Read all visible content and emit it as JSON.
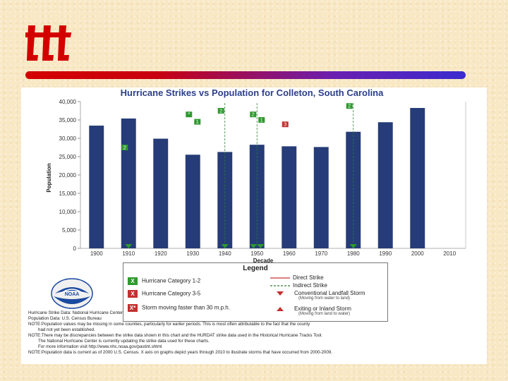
{
  "chart_data": {
    "type": "bar",
    "title": "Hurricane Strikes vs Population for Colleton, South Carolina",
    "xlabel": "Decade",
    "ylabel": "Population",
    "ylim": [
      0,
      40000
    ],
    "yticks": [
      0,
      5000,
      10000,
      15000,
      20000,
      25000,
      30000,
      35000,
      40000
    ],
    "ytick_labels": [
      "0",
      "5,000",
      "10,000",
      "15,000",
      "20,000",
      "25,000",
      "30,000",
      "35,000",
      "40,000"
    ],
    "categories": [
      "1900",
      "1910",
      "1920",
      "1930",
      "1940",
      "1950",
      "1960",
      "1970",
      "1980",
      "1990",
      "2000",
      "2010"
    ],
    "values": [
      33452,
      35390,
      29897,
      25526,
      26268,
      28242,
      27816,
      27622,
      31776,
      34377,
      38264,
      null
    ],
    "indirect_strikes": [
      "1940",
      "1950",
      "1980"
    ],
    "strike_markers": [
      {
        "decade": "1910",
        "level": 27500,
        "label": "2",
        "color": "#2e9a2e"
      },
      {
        "decade": "1930",
        "level": 36500,
        "label": "^",
        "color": "#2e9a2e"
      },
      {
        "decade": "1930",
        "level": 34500,
        "label": "1",
        "color": "#2e9a2e"
      },
      {
        "decade": "1940",
        "level": 37500,
        "label": "2",
        "color": "#2e9a2e"
      },
      {
        "decade": "1950",
        "level": 36500,
        "label": "2",
        "color": "#2e9a2e"
      },
      {
        "decade": "1950",
        "level": 35000,
        "label": "1",
        "color": "#2e9a2e"
      },
      {
        "decade": "1960",
        "level": 33800,
        "label": "3",
        "color": "#c43030"
      },
      {
        "decade": "1980",
        "level": 38800,
        "label": "2",
        "color": "#2e9a2e"
      }
    ],
    "landfall_markers": [
      "1910",
      "1940",
      "1950",
      "1950",
      "1980"
    ]
  },
  "legend": {
    "title": "Legend",
    "cat12": "Hurricane Category 1-2",
    "cat35": "Hurricane Category 3-5",
    "fast": "Storm moving faster than 30 m.p.h.",
    "direct": "Direct Strike",
    "indirect": "Indirect Strike",
    "landfall": "Conventional Landfall Storm",
    "landfall_sub": "(Moving from water to land)",
    "exiting": "Exiting or Inland Storm",
    "exiting_sub": "(Moving from land to water)",
    "icon_x": "X"
  },
  "logo_text": "NOAA",
  "colors": {
    "bar": "#253c78",
    "green": "#2e9a2e",
    "red": "#c43030",
    "indirect": "#2e7a2e"
  },
  "notes": [
    "Hurricane Strike Data: National Hurricane Center",
    "Population Data: U.S. Census Bureau",
    "NOTE:Population values may be missing in some counties, particularly for earlier periods. This is most often attributable to the fact that the county",
    "had not yet been established.",
    "NOTE:There may be discrepancies between the strike data shown in this chart and the HURDAT strike data used in the Historical Hurricane Tracks Tool.",
    "The National Hurricane Center is currently updating the strike data used for these charts.",
    "For more information visit http://www.nhc.noaa.gov/pastint.shtml",
    "NOTE:Population data is current as of 2000 U.S. Census. X axis on graphs depict years through 2010 to illustrate storms that have occurred from 2000-2009."
  ]
}
